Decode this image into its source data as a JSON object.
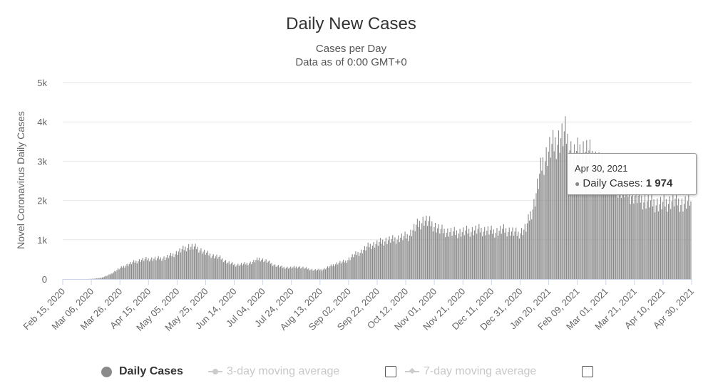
{
  "chart_data": {
    "type": "bar",
    "title": "Daily New Cases",
    "subtitle": "Cases per Day",
    "subtitle2": "Data as of 0:00 GMT+0",
    "ylabel": "Novel Coronavirus Daily Cases",
    "ylim": [
      0,
      5000
    ],
    "y_ticks": [
      "0",
      "1k",
      "2k",
      "3k",
      "4k",
      "5k"
    ],
    "x_tick_labels": [
      "Feb 15, 2020",
      "Mar 06, 2020",
      "Mar 26, 2020",
      "Apr 15, 2020",
      "May 05, 2020",
      "May 25, 2020",
      "Jun 14, 2020",
      "Jul 04, 2020",
      "Jul 24, 2020",
      "Aug 13, 2020",
      "Sep 02, 2020",
      "Sep 22, 2020",
      "Oct 12, 2020",
      "Nov 01, 2020",
      "Nov 21, 2020",
      "Dec 11, 2020",
      "Dec 31, 2020",
      "Jan 20, 2021",
      "Feb 09, 2021",
      "Mar 01, 2021",
      "Mar 21, 2021",
      "Apr 10, 2021",
      "Apr 30, 2021"
    ],
    "bar_color": "#888888",
    "grid": true,
    "start_date": "Feb 15, 2020",
    "series": [
      {
        "name": "Daily Cases",
        "weekly_values": [
          0,
          0,
          0,
          0,
          10,
          40,
          120,
          250,
          350,
          430,
          490,
          510,
          520,
          540,
          620,
          730,
          830,
          800,
          680,
          600,
          540,
          420,
          360,
          380,
          420,
          520,
          450,
          350,
          300,
          290,
          310,
          270,
          230,
          240,
          320,
          410,
          450,
          600,
          700,
          850,
          900,
          980,
          1000,
          1050,
          1100,
          1350,
          1500,
          1400,
          1250,
          1200,
          1180,
          1200,
          1230,
          1250,
          1230,
          1200,
          1250,
          1220,
          1150,
          1300,
          1900,
          2900,
          3300,
          3500,
          3700,
          3100,
          3300,
          3200,
          3000,
          2800,
          2500,
          2300,
          2200,
          2100,
          2000,
          1950,
          1900,
          1950,
          2000,
          1900,
          1974
        ]
      }
    ],
    "tooltip": {
      "date": "Apr 30, 2021",
      "label": "Daily Cases:",
      "value": "1 974"
    },
    "legend": [
      {
        "label": "Daily Cases",
        "active": true
      },
      {
        "label": "3-day moving average",
        "active": false
      },
      {
        "label": "7-day moving average",
        "active": false
      }
    ]
  }
}
